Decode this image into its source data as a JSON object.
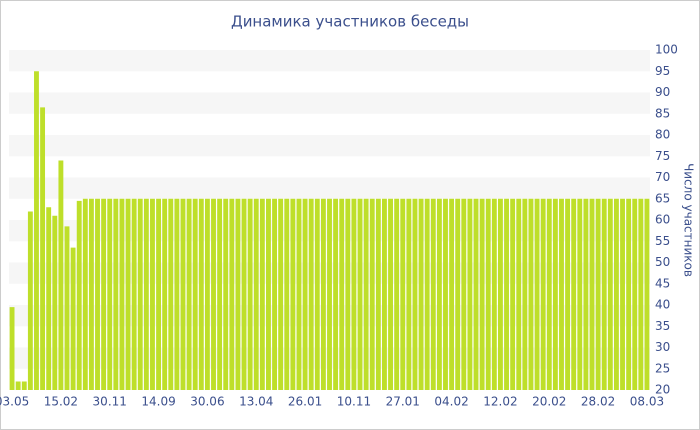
{
  "chart_data": {
    "type": "bar",
    "title": "Динамика участников беседы",
    "y_label": "Число участников",
    "color": "#bedf2a",
    "categories": [
      "03.05",
      null,
      null,
      null,
      null,
      null,
      null,
      null,
      "15.02",
      null,
      null,
      null,
      null,
      null,
      null,
      null,
      "30.11",
      null,
      null,
      null,
      null,
      null,
      null,
      null,
      "14.09",
      null,
      null,
      null,
      null,
      null,
      null,
      null,
      "30.06",
      null,
      null,
      null,
      null,
      null,
      null,
      null,
      "13.04",
      null,
      null,
      null,
      null,
      null,
      null,
      null,
      "26.01",
      null,
      null,
      null,
      null,
      null,
      null,
      null,
      "10.11",
      null,
      null,
      null,
      null,
      null,
      null,
      null,
      "27.01",
      null,
      null,
      null,
      null,
      null,
      null,
      null,
      "04.02",
      null,
      null,
      null,
      null,
      null,
      null,
      null,
      "12.02",
      null,
      null,
      null,
      null,
      null,
      null,
      null,
      "20.02",
      null,
      null,
      null,
      null,
      null,
      null,
      null,
      "28.02",
      null,
      null,
      null,
      null,
      null,
      null,
      null,
      "08.03"
    ],
    "values": [
      39.5,
      22,
      22,
      62,
      95,
      86.5,
      63,
      61,
      74,
      58.5,
      53.5,
      64.5,
      65,
      65,
      65,
      65,
      65,
      65,
      65,
      65,
      65,
      65,
      65,
      65,
      65,
      65,
      65,
      65,
      65,
      65,
      65,
      65,
      65,
      65,
      65,
      65,
      65,
      65,
      65,
      65,
      65,
      65,
      65,
      65,
      65,
      65,
      65,
      65,
      65,
      65,
      65,
      65,
      65,
      65,
      65,
      65,
      65,
      65,
      65,
      65,
      65,
      65,
      65,
      65,
      65,
      65,
      65,
      65,
      65,
      65,
      65,
      65,
      65,
      65,
      65,
      65,
      65,
      65,
      65,
      65,
      65,
      65,
      65,
      65,
      65,
      65,
      65,
      65,
      65,
      65,
      65,
      65,
      65,
      65,
      65,
      65,
      65,
      65,
      65,
      65,
      65,
      65,
      65,
      65,
      65
    ],
    "ylim": [
      20,
      100
    ],
    "yticks": [
      20,
      25,
      30,
      35,
      40,
      45,
      50,
      55,
      60,
      65,
      70,
      75,
      80,
      85,
      90,
      95,
      100
    ],
    "y_axis_side": "right",
    "banded": true
  }
}
